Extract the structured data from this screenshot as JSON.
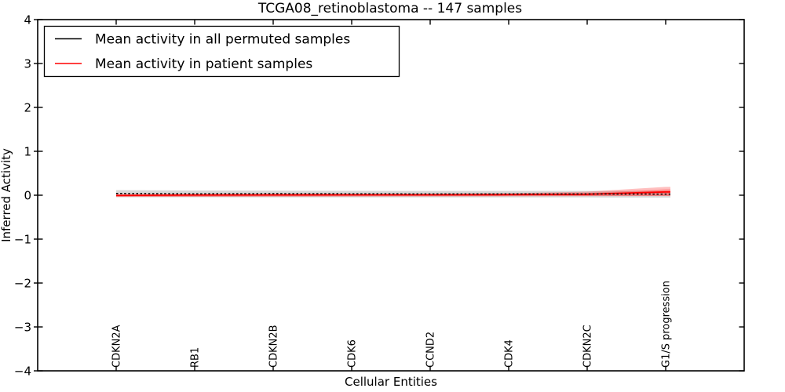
{
  "page": {
    "background": "#ffffff"
  },
  "chart_data": {
    "type": "line",
    "title": "TCGA08_retinoblastoma -- 147 samples",
    "xlabel": "Cellular Entities",
    "ylabel": "Inferred Activity",
    "xlim": [
      0,
      9
    ],
    "ylim": [
      -4,
      4
    ],
    "grid": false,
    "legend_position": "upper left",
    "ytick_values": [
      4,
      3,
      2,
      1,
      0,
      -1,
      -2,
      -3,
      -4
    ],
    "ytick_labels": [
      "4",
      "3",
      "2",
      "1",
      "0",
      "−1",
      "−2",
      "−3",
      "−4"
    ],
    "categories": [
      "CDKN2A",
      "RB1",
      "CDKN2B",
      "CDK6",
      "CCND2",
      "CDK4",
      "CDKN2C",
      "G1/S progression"
    ],
    "x": [
      1,
      2,
      3,
      4,
      5,
      6,
      7,
      8
    ],
    "axis_color": "#000000",
    "series": [
      {
        "name": "Mean activity in all permuted samples",
        "color": "#000000",
        "line_style": "dashed",
        "values": [
          0.04,
          0.032,
          0.035,
          0.032,
          0.029,
          0.029,
          0.029,
          0.025
        ],
        "band_top": [
          0.115,
          0.107,
          0.105,
          0.1,
          0.098,
          0.098,
          0.098,
          0.096
        ],
        "band_bottom": [
          -0.045,
          -0.047,
          -0.048,
          -0.048,
          -0.048,
          -0.048,
          -0.05,
          -0.054
        ],
        "band_color": "#999999",
        "band_opacity": 0.38
      },
      {
        "name": "Mean activity in patient samples",
        "color": "#ff0000",
        "line_style": "solid",
        "values": [
          -0.004,
          0.004,
          0.007,
          0.009,
          0.009,
          0.013,
          0.021,
          0.075
        ],
        "band_top": [
          0.023,
          0.027,
          0.03,
          0.032,
          0.036,
          0.045,
          0.08,
          0.19
        ],
        "band_bottom": [
          -0.041,
          -0.036,
          -0.032,
          -0.029,
          -0.027,
          -0.023,
          -0.021,
          -0.018
        ],
        "band_inner_top": [
          0.01,
          0.015,
          0.018,
          0.02,
          0.024,
          0.03,
          0.048,
          0.135
        ],
        "band_inner_bottom": [
          -0.034,
          -0.03,
          -0.027,
          -0.024,
          -0.022,
          -0.019,
          -0.017,
          -0.015
        ],
        "band_color": "#ff2a2a",
        "band_opacity": 0.3
      }
    ]
  }
}
